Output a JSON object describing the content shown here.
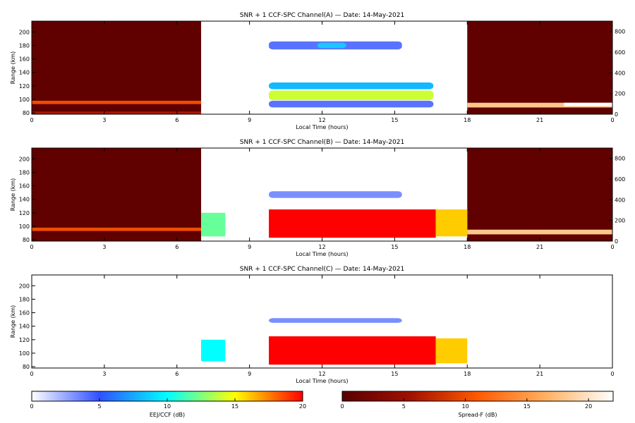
{
  "chart_data": [
    {
      "type": "heatmap",
      "title": "SNR + 1 CCF-SPC Channel(A) — Date: 14-May-2021",
      "xlabel": "Local Time (hours)",
      "ylabel": "Range (km)",
      "xlim": [
        0,
        24
      ],
      "ylim": [
        78,
        216
      ],
      "xticks": [
        "0",
        "3",
        "6",
        "9",
        "12",
        "15",
        "18",
        "21",
        "0"
      ],
      "yticks": [
        "80",
        "100",
        "120",
        "140",
        "160",
        "180",
        "200"
      ],
      "right_ylim": [
        0,
        900
      ],
      "right_yticks": [
        "0",
        "200",
        "400",
        "600",
        "800"
      ],
      "spreadF_night_windows": [
        [
          0,
          7
        ],
        [
          18,
          24
        ]
      ],
      "features": [
        {
          "kind": "spreadF-background",
          "x": [
            0,
            7
          ],
          "y": [
            78,
            216
          ],
          "db": 0.5
        },
        {
          "kind": "spreadF-layer",
          "x": [
            0,
            7
          ],
          "y": [
            93,
            98
          ],
          "db": 10
        },
        {
          "kind": "spreadF-base",
          "x": [
            0,
            7
          ],
          "y": [
            78,
            82
          ],
          "db": 6
        },
        {
          "kind": "spreadF-background",
          "x": [
            18,
            24
          ],
          "y": [
            78,
            216
          ],
          "db": 0.5
        },
        {
          "kind": "spreadF-layer",
          "x": [
            18,
            24
          ],
          "y": [
            88,
            95
          ],
          "db": 18
        },
        {
          "kind": "spreadF-layer",
          "x": [
            22,
            24
          ],
          "y": [
            90,
            95
          ],
          "db": 22
        },
        {
          "kind": "eej-echo",
          "x": [
            9.8,
            16.6
          ],
          "y": [
            115,
            125
          ],
          "db": 8
        },
        {
          "kind": "eej-echo",
          "x": [
            9.8,
            16.6
          ],
          "y": [
            99,
            113
          ],
          "db": 14
        },
        {
          "kind": "eej-echo",
          "x": [
            9.8,
            16.6
          ],
          "y": [
            88,
            98
          ],
          "db": 4
        },
        {
          "kind": "150km-echo",
          "x": [
            9.8,
            15.3
          ],
          "y": [
            174,
            186
          ],
          "db": 5
        },
        {
          "kind": "150km-echo",
          "x": [
            11.8,
            13.0
          ],
          "y": [
            176,
            184
          ],
          "db": 9
        }
      ]
    },
    {
      "type": "heatmap",
      "title": "SNR + 1 CCF-SPC Channel(B) — Date: 14-May-2021",
      "xlabel": "Local Time (hours)",
      "ylabel": "Range (km)",
      "xlim": [
        0,
        24
      ],
      "ylim": [
        78,
        216
      ],
      "xticks": [
        "0",
        "3",
        "6",
        "9",
        "12",
        "15",
        "18",
        "21",
        "0"
      ],
      "yticks": [
        "80",
        "100",
        "120",
        "140",
        "160",
        "180",
        "200"
      ],
      "right_ylim": [
        0,
        900
      ],
      "right_yticks": [
        "0",
        "200",
        "400",
        "600",
        "800"
      ],
      "features": [
        {
          "kind": "spreadF-background",
          "x": [
            0,
            7
          ],
          "y": [
            78,
            216
          ],
          "db": 0.5
        },
        {
          "kind": "spreadF-layer",
          "x": [
            0,
            7
          ],
          "y": [
            93,
            98
          ],
          "db": 10
        },
        {
          "kind": "spreadF-background",
          "x": [
            18,
            24
          ],
          "y": [
            78,
            216
          ],
          "db": 0.5
        },
        {
          "kind": "spreadF-layer",
          "x": [
            18,
            24
          ],
          "y": [
            88,
            95
          ],
          "db": 18
        },
        {
          "kind": "eej-saturated",
          "x": [
            9.8,
            16.7
          ],
          "y": [
            83,
            125
          ],
          "db": 20
        },
        {
          "kind": "eej-patches",
          "x": [
            7.0,
            8.0
          ],
          "y": [
            85,
            120
          ],
          "db": 12
        },
        {
          "kind": "eej-patches",
          "x": [
            16.7,
            18
          ],
          "y": [
            85,
            125
          ],
          "db": 16
        },
        {
          "kind": "150km-echo",
          "x": [
            9.8,
            15.3
          ],
          "y": [
            142,
            152
          ],
          "db": 4
        }
      ]
    },
    {
      "type": "heatmap",
      "title": "SNR + 1 CCF-SPC Channel(C) — Date: 14-May-2021",
      "xlabel": "Local Time (hours)",
      "ylabel": "Range (km)",
      "xlim": [
        0,
        24
      ],
      "ylim": [
        78,
        216
      ],
      "xticks": [
        "0",
        "3",
        "6",
        "9",
        "12",
        "15",
        "18",
        "21",
        "0"
      ],
      "yticks": [
        "80",
        "100",
        "120",
        "140",
        "160",
        "180",
        "200"
      ],
      "features": [
        {
          "kind": "eej-saturated",
          "x": [
            9.8,
            16.7
          ],
          "y": [
            83,
            125
          ],
          "db": 20
        },
        {
          "kind": "eej-patches",
          "x": [
            7.0,
            8.0
          ],
          "y": [
            88,
            120
          ],
          "db": 10
        },
        {
          "kind": "eej-patches",
          "x": [
            16.7,
            18
          ],
          "y": [
            85,
            122
          ],
          "db": 16
        },
        {
          "kind": "150km-echo",
          "x": [
            9.8,
            15.3
          ],
          "y": [
            145,
            152
          ],
          "db": 4
        }
      ]
    }
  ],
  "colorbars": [
    {
      "label": "EEJ/CCF (dB)",
      "ticks": [
        "0",
        "5",
        "10",
        "15",
        "20"
      ],
      "range": [
        0,
        20
      ],
      "colors": [
        "#ffffff",
        "#3050ff",
        "#00ffff",
        "#ffff00",
        "#ff0000"
      ]
    },
    {
      "label": "Spread-F (dB)",
      "ticks": [
        "0",
        "5",
        "10",
        "15",
        "20"
      ],
      "range": [
        0,
        22
      ],
      "colors": [
        "#5a0000",
        "#a01000",
        "#ff5a00",
        "#ffb060",
        "#ffffff"
      ]
    }
  ]
}
